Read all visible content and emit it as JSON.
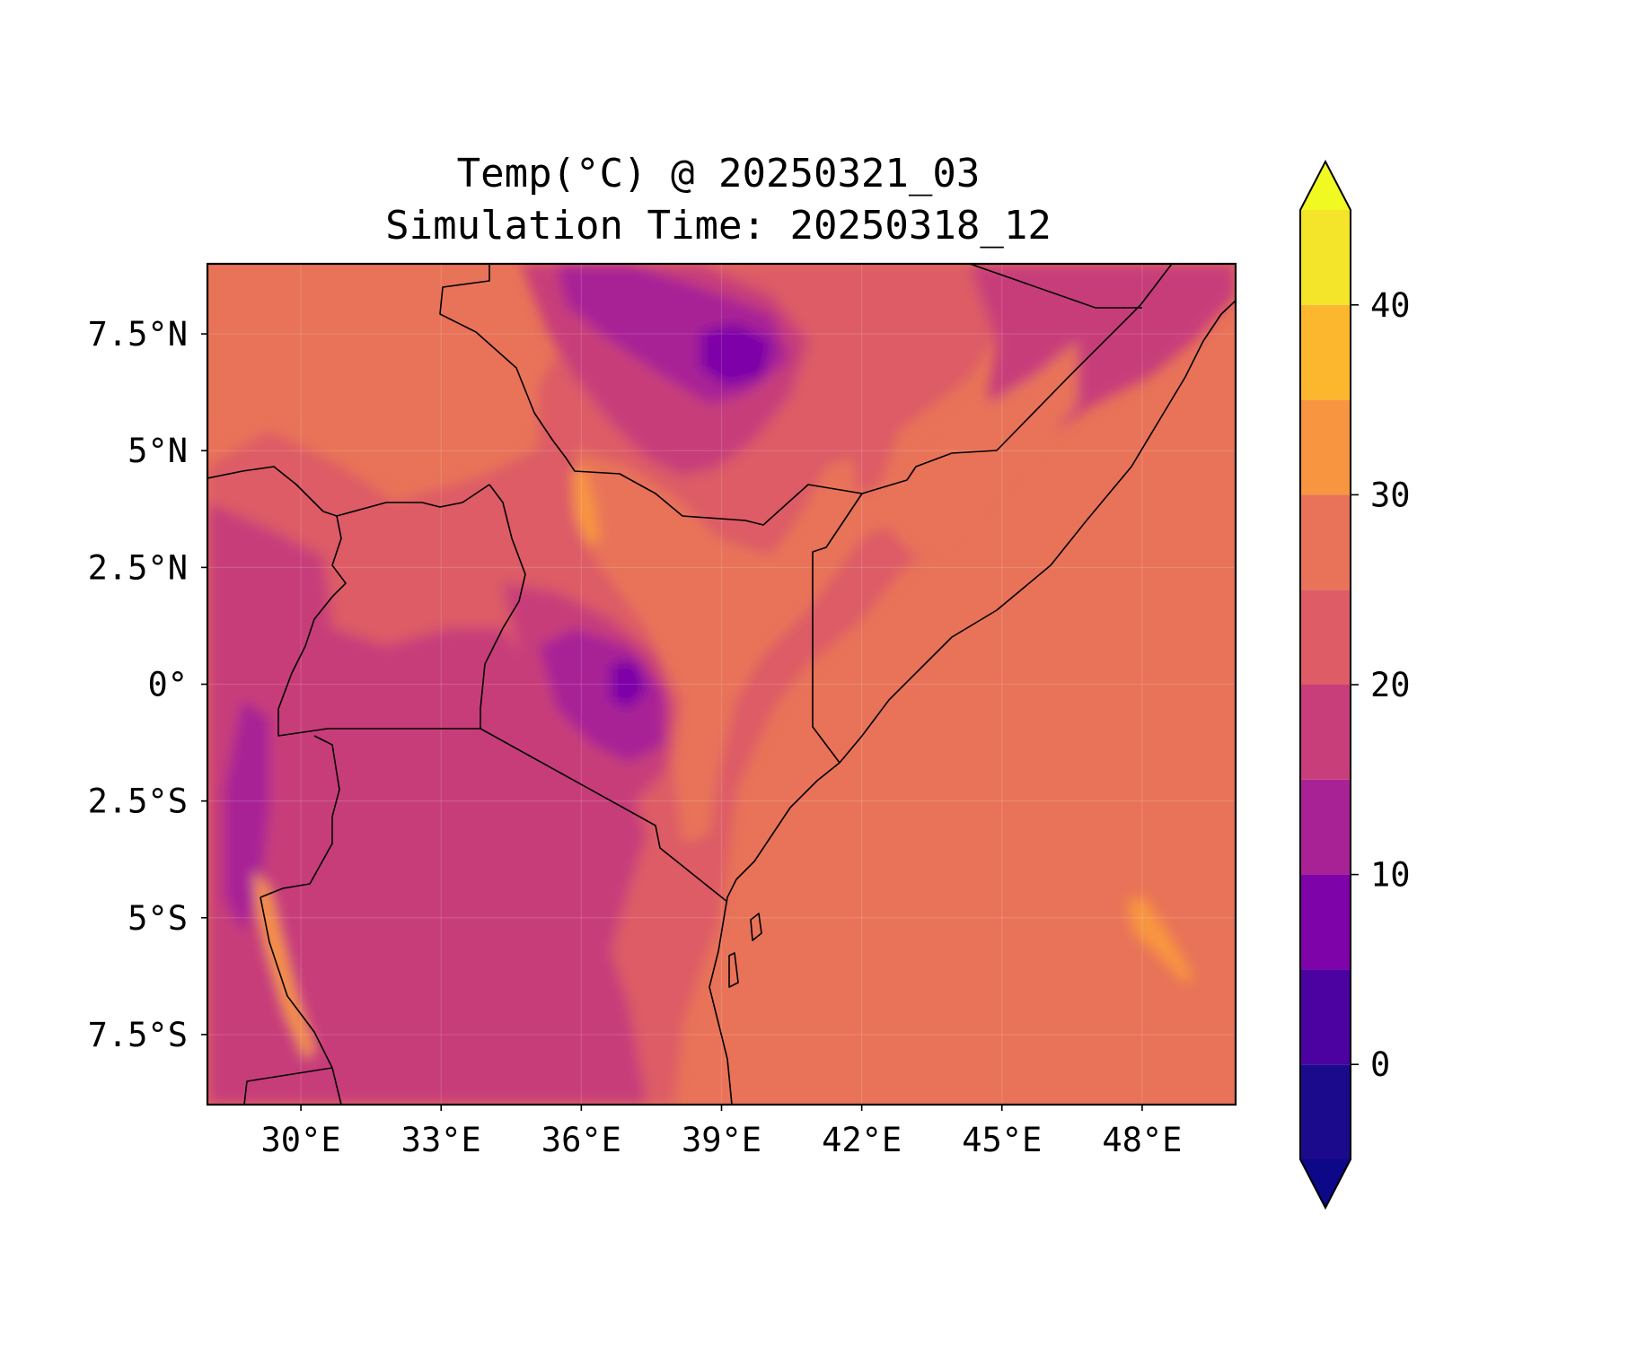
{
  "title": {
    "line1": "Temp(°C) @ 20250321_03",
    "line2": "Simulation Time: 20250318_12"
  },
  "map": {
    "lon_range": [
      28,
      50
    ],
    "lat_range": [
      -9,
      9
    ],
    "lon_ticks": [
      {
        "value": 30,
        "label": "30°E"
      },
      {
        "value": 33,
        "label": "33°E"
      },
      {
        "value": 36,
        "label": "36°E"
      },
      {
        "value": 39,
        "label": "39°E"
      },
      {
        "value": 42,
        "label": "42°E"
      },
      {
        "value": 45,
        "label": "45°E"
      },
      {
        "value": 48,
        "label": "48°E"
      }
    ],
    "lat_ticks": [
      {
        "value": 7.5,
        "label": "7.5°N"
      },
      {
        "value": 5,
        "label": "5°N"
      },
      {
        "value": 2.5,
        "label": "2.5°N"
      },
      {
        "value": 0,
        "label": "0°"
      },
      {
        "value": -2.5,
        "label": "2.5°S"
      },
      {
        "value": -5,
        "label": "5°S"
      },
      {
        "value": -7.5,
        "label": "7.5°S"
      }
    ],
    "ocean_color": "#e87358",
    "gridlines": true,
    "features": [
      "coastlines",
      "country-borders",
      "filled-temperature-contours"
    ]
  },
  "colorbar": {
    "levels": [
      -5,
      0,
      5,
      10,
      15,
      20,
      25,
      30,
      35,
      40,
      45
    ],
    "colors": [
      "#1b0a8c",
      "#4c02a1",
      "#7e03a8",
      "#a82296",
      "#c73e7a",
      "#dd5c66",
      "#e87358",
      "#f89540",
      "#fdb72f",
      "#f4e42a"
    ],
    "under_color": "#0d0887",
    "over_color": "#f0f921",
    "extend": "both",
    "tick_labels": [
      {
        "value": 0,
        "label": "0"
      },
      {
        "value": 10,
        "label": "10"
      },
      {
        "value": 20,
        "label": "20"
      },
      {
        "value": 30,
        "label": "30"
      },
      {
        "value": 40,
        "label": "40"
      }
    ]
  }
}
